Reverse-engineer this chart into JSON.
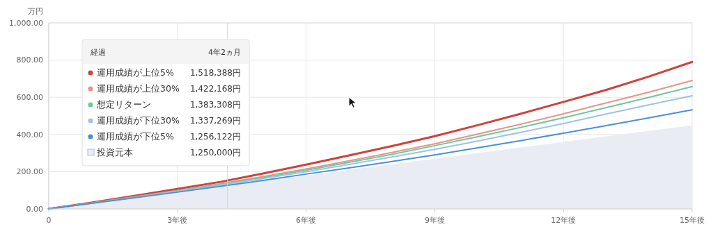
{
  "chart_data": {
    "type": "line",
    "ylabel": "万円",
    "x": [
      0,
      1,
      2,
      3,
      4,
      5,
      6,
      7,
      8,
      9,
      10,
      11,
      12,
      13,
      14,
      15
    ],
    "xlim": [
      0,
      15
    ],
    "ylim": [
      0,
      1000
    ],
    "xticks": [
      0,
      {
        "value": 3,
        "label": "3年後"
      },
      {
        "value": 6,
        "label": "6年後"
      },
      {
        "value": 9,
        "label": "9年後"
      },
      {
        "value": 12,
        "label": "12年後"
      },
      {
        "value": 15,
        "label": "15年後"
      }
    ],
    "yticks": [
      {
        "value": 0,
        "label": "0.00"
      },
      {
        "value": 200,
        "label": "200.00"
      },
      {
        "value": 400,
        "label": "400.00"
      },
      {
        "value": 600,
        "label": "600.00"
      },
      {
        "value": 800,
        "label": "800.00"
      },
      {
        "value": 1000,
        "label": "1,000.00"
      }
    ],
    "grid": true,
    "legend": "top left",
    "marker": "none",
    "line_style": "solid",
    "legend_title": "経過",
    "annotations": [
      "4年2ヵ月",
      "1,518,388円",
      "1,422,168円",
      "1,383,308円",
      "1,337,269円",
      "1,256,122円",
      "1,250,000円"
    ],
    "ref_lines": [
      {
        "axis": "x",
        "value": 4.1667,
        "label": null,
        "color": "#d0d3d8"
      }
    ],
    "series": [
      {
        "name": "運用成績が上位5%",
        "color": "#d0423a",
        "values": [
          0,
          34,
          70,
          107,
          145,
          190,
          238,
          287,
          338,
          391,
          450,
          511,
          575,
          640,
          712,
          790
        ]
      },
      {
        "name": "運用成績が上位30%",
        "color": "#e8928a",
        "values": [
          0,
          32,
          65,
          99,
          135,
          174,
          215,
          258,
          303,
          350,
          402,
          455,
          511,
          570,
          628,
          690
        ]
      },
      {
        "name": "想定リターン",
        "color": "#6cc99a",
        "values": [
          0,
          31,
          63,
          97,
          132,
          169,
          208,
          250,
          293,
          340,
          388,
          438,
          490,
          545,
          600,
          658
        ]
      },
      {
        "name": "運用成績が下位30%",
        "color": "#9cc3e6",
        "values": [
          0,
          31,
          62,
          94,
          128,
          163,
          200,
          239,
          279,
          320,
          365,
          411,
          459,
          510,
          560,
          608
        ]
      },
      {
        "name": "運用成績が下位5%",
        "color": "#4a90d9",
        "values": [
          0,
          30,
          60,
          90,
          121,
          153,
          187,
          220,
          255,
          290,
          328,
          367,
          407,
          448,
          490,
          533
        ]
      },
      {
        "name": "投資元本",
        "type": "area",
        "color": "#e9edf3",
        "values": [
          0,
          30,
          60,
          90,
          120,
          150,
          180,
          210,
          240,
          270,
          300,
          330,
          360,
          390,
          420,
          450
        ]
      }
    ]
  }
}
